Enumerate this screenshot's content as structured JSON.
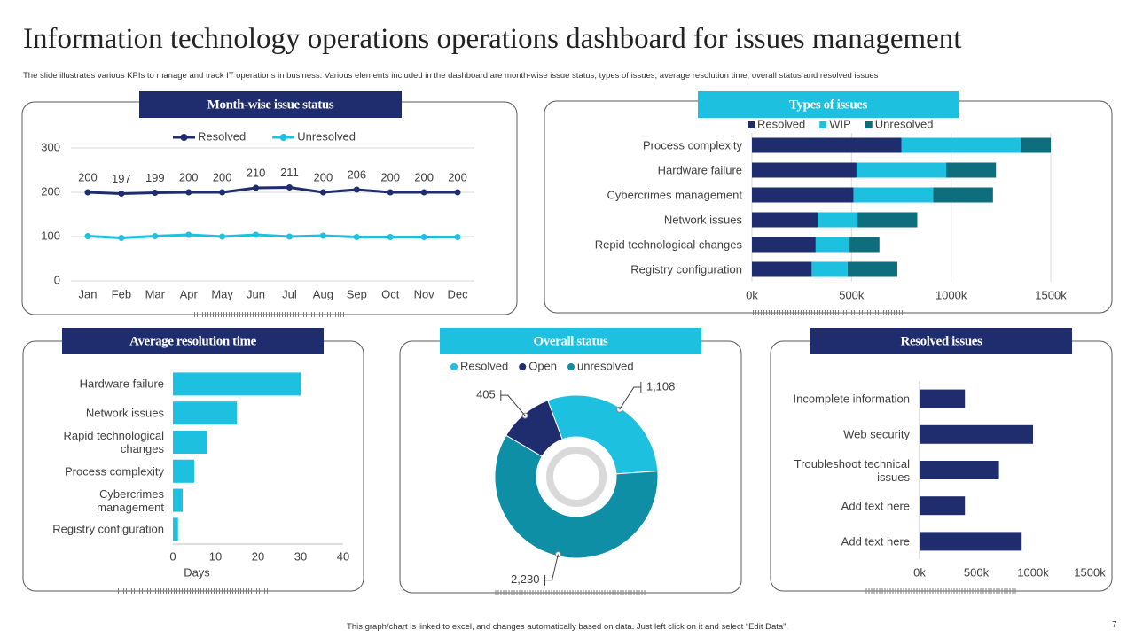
{
  "title": "Information technology operations operations dashboard for issues management",
  "subtitle": "The slide illustrates various KPIs to manage and track IT operations in business. Various elements included in the dashboard are month-wise issue status, types of issues, average resolution time, overall status and resolved issues",
  "footer": "This graph/chart is linked to excel, and changes automatically based on data. Just left click on it and select “Edit Data”.",
  "page_number": 7,
  "chart_data": [
    {
      "type": "line",
      "title": "Month-wise issue status",
      "categories": [
        "Jan",
        "Feb",
        "Mar",
        "Apr",
        "May",
        "Jun",
        "Jul",
        "Aug",
        "Sep",
        "Oct",
        "Nov",
        "Dec"
      ],
      "series": [
        {
          "name": "Resolved",
          "color": "#1f2d6e",
          "data_labels": true,
          "values": [
            200,
            197,
            199,
            200,
            200,
            210,
            211,
            200,
            206,
            200,
            200,
            200
          ]
        },
        {
          "name": "Unresolved",
          "color": "#1ec0e0",
          "data_labels": false,
          "values": [
            101,
            97,
            101,
            104,
            100,
            104,
            100,
            102,
            99,
            99,
            99,
            99
          ]
        }
      ],
      "ylim": [
        0,
        300
      ],
      "yticks": [
        0,
        100,
        200,
        300
      ],
      "grid": true,
      "legend": "top"
    },
    {
      "type": "bar",
      "orientation": "horizontal",
      "stacked": true,
      "title": "Types of issues",
      "categories": [
        "Process complexity",
        "Hardware failure",
        "Cybercrimes management",
        "Network issues",
        "Repid technological changes",
        "Registry configuration"
      ],
      "series": [
        {
          "name": "Resolved",
          "color": "#1f2d6e",
          "values": [
            750000,
            525000,
            510000,
            330000,
            320000,
            300000
          ]
        },
        {
          "name": "WIP",
          "color": "#1ec0e0",
          "values": [
            600000,
            450000,
            400000,
            200000,
            170000,
            180000
          ]
        },
        {
          "name": "Unresolved",
          "color": "#0f6e7d",
          "values": [
            150000,
            250000,
            300000,
            300000,
            150000,
            250000
          ]
        }
      ],
      "xlim": [
        0,
        1500000
      ],
      "xticks": [
        {
          "value": 0,
          "label": "0k"
        },
        {
          "value": 500000,
          "label": "500k"
        },
        {
          "value": 1000000,
          "label": "1000k"
        },
        {
          "value": 1500000,
          "label": "1500k"
        }
      ],
      "grid": true,
      "legend": "top"
    },
    {
      "type": "bar",
      "orientation": "horizontal",
      "title": "Average resolution time",
      "categories": [
        "Hardware failure",
        "Network issues",
        "Rapid technological changes",
        "Process complexity",
        "Cybercrimes management",
        "Registry configuration"
      ],
      "values": [
        30,
        15,
        8,
        5,
        2.3,
        1.2
      ],
      "color": "#1ec0e0",
      "xlim": [
        0,
        40
      ],
      "xticks": [
        0,
        10,
        20,
        30,
        40
      ],
      "xlabel": "Days",
      "grid": false
    },
    {
      "type": "donut",
      "title": "Overall status",
      "categories": [
        "Resolved",
        "Open",
        "unresolved"
      ],
      "values": [
        1108,
        405,
        2230
      ],
      "value_labels": [
        "1,108",
        "405",
        "2,230"
      ],
      "colors": [
        "#1ec0e0",
        "#1f2d6e",
        "#0e8fa6"
      ],
      "legend": "top"
    },
    {
      "type": "bar",
      "orientation": "horizontal",
      "title": "Resolved issues",
      "categories": [
        "Incomplete information",
        "Web security",
        "Troubleshoot technical issues",
        "Add text here",
        "Add text here"
      ],
      "values": [
        400000,
        1000000,
        700000,
        400000,
        900000
      ],
      "color": "#1f2d6e",
      "xlim": [
        0,
        1500000
      ],
      "xticks": [
        {
          "value": 0,
          "label": "0k"
        },
        {
          "value": 500000,
          "label": "500k"
        },
        {
          "value": 1000000,
          "label": "1000k"
        },
        {
          "value": 1500000,
          "label": "1500k"
        }
      ],
      "grid": false
    }
  ]
}
